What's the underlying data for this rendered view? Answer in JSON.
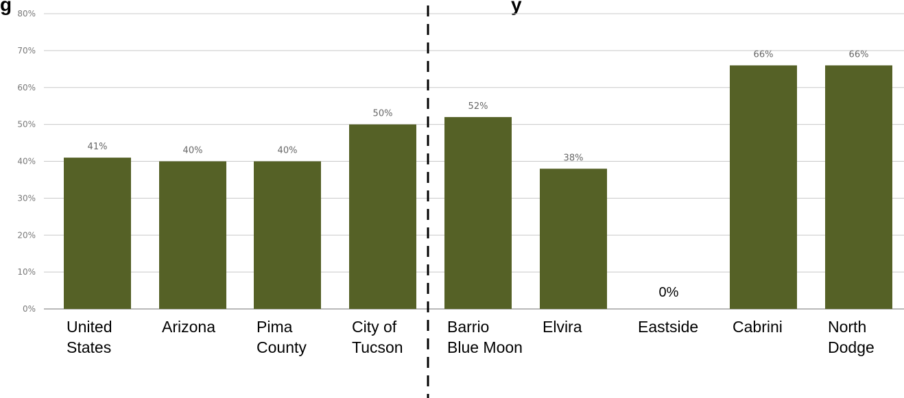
{
  "chart_data": {
    "type": "bar",
    "title_fragments": [
      "g",
      "y"
    ],
    "categories": [
      [
        "United",
        "States"
      ],
      [
        "Arizona"
      ],
      [
        "Pima",
        "County"
      ],
      [
        "City of",
        "Tucson"
      ],
      [
        "Barrio",
        "Blue Moon"
      ],
      [
        "Elvira"
      ],
      [
        "Eastside"
      ],
      [
        "Cabrini"
      ],
      [
        "North",
        "Dodge"
      ]
    ],
    "values": [
      41,
      40,
      40,
      50,
      52,
      38,
      0,
      66,
      66
    ],
    "value_labels": [
      "41%",
      "40%",
      "40%",
      "50%",
      "52%",
      "38%",
      "0%",
      "66%",
      "66%"
    ],
    "y_ticks": [
      "0%",
      "10%",
      "20%",
      "30%",
      "40%",
      "50%",
      "60%",
      "70%",
      "80%"
    ],
    "ylim": [
      0,
      80
    ],
    "grid": true,
    "separator_after_category_index": 3,
    "colors": {
      "bar": "#556126",
      "grid": "#c8c8c8",
      "axis": "#a0a0a0",
      "separator": "#000000"
    }
  }
}
